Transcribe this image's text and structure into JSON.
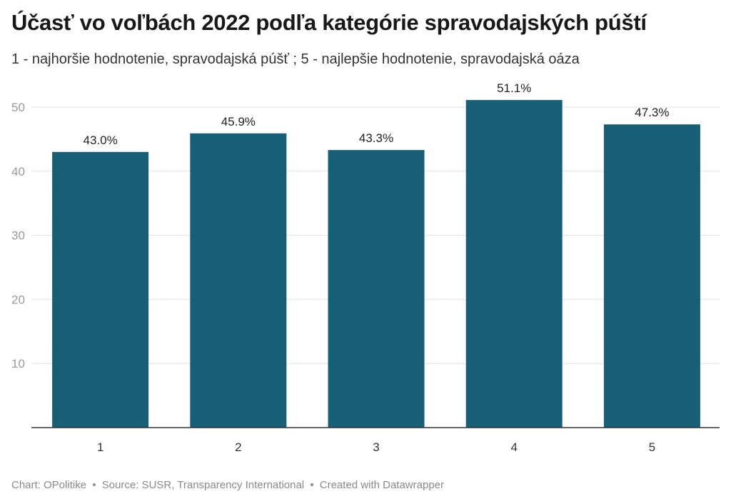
{
  "header": {
    "title": "Účasť vo voľbách 2022 podľa kategórie spravodajských púští",
    "subtitle": "1 - najhoršie hodnotenie, spravodajská púšť ; 5 - najlepšie hodnotenie, spravodajská oáza"
  },
  "footer": {
    "chart_by": "Chart: OPolitike",
    "source": "Source: SUSR, Transparency International",
    "created_with": "Created with Datawrapper",
    "separator": "•"
  },
  "colors": {
    "bar": "#175f76",
    "grid": "#e2e2e2",
    "axis": "#333333",
    "tick_label": "#9a9a9a"
  },
  "chart_data": {
    "type": "bar",
    "title": "Účasť vo voľbách 2022 podľa kategórie spravodajských púští",
    "xlabel": "",
    "ylabel": "",
    "categories": [
      "1",
      "2",
      "3",
      "4",
      "5"
    ],
    "values": [
      43.0,
      45.9,
      43.3,
      51.1,
      47.3
    ],
    "value_labels": [
      "43.0%",
      "45.9%",
      "43.3%",
      "51.1%",
      "47.3%"
    ],
    "y_ticks": [
      10,
      20,
      30,
      40,
      50
    ],
    "ylim": [
      0,
      50
    ],
    "grid": true,
    "legend": "none"
  }
}
